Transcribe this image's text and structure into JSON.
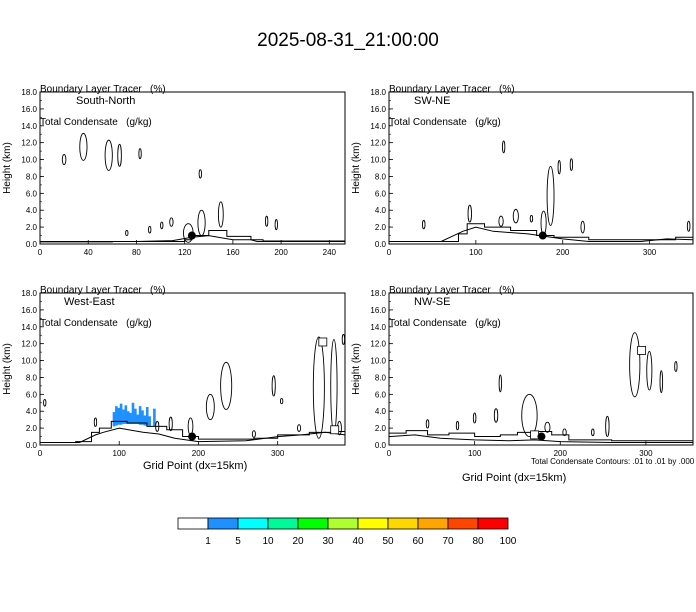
{
  "title": "2025-08-31_21:00:00",
  "header_line1": "Boundary Layer Tracer   (%)",
  "header_line2": "Total Condensate   (g/kg)",
  "x_axis_title": "Grid Point (dx=15km)",
  "y_axis_title": "Height (km)",
  "footnote": "Total Condensate Contours: .01 to .01 by .000",
  "colorbar": {
    "colors": [
      "#ffffff",
      "#1e90ff",
      "#00ffff",
      "#00fa9a",
      "#00ff00",
      "#adff2f",
      "#ffff00",
      "#ffd700",
      "#ffa500",
      "#ff4500",
      "#ff0000"
    ],
    "labels": [
      "1",
      "5",
      "10",
      "20",
      "30",
      "40",
      "50",
      "60",
      "70",
      "80",
      "100"
    ]
  },
  "chart_data": [
    {
      "type": "heatmap",
      "panel_label": "South-North",
      "xlim": [
        0,
        253
      ],
      "ylim": [
        0,
        18
      ],
      "x_ticks": [
        "0",
        "40",
        "80",
        "120",
        "160",
        "200",
        "240"
      ],
      "y_ticks": [
        "0.0",
        "2.0",
        "4.0",
        "6.0",
        "8.0",
        "10.0",
        "12.0",
        "14.0",
        "16.0",
        "18.0"
      ],
      "marker": {
        "x": 126,
        "y": 1.0
      },
      "terrain": [
        [
          0,
          0.3
        ],
        [
          40,
          0.3
        ],
        [
          80,
          0.3
        ],
        [
          110,
          0.4
        ],
        [
          126,
          0.8
        ],
        [
          140,
          1.0
        ],
        [
          160,
          0.5
        ],
        [
          175,
          0.5
        ],
        [
          180,
          0.3
        ],
        [
          253,
          0.3
        ]
      ],
      "boundary_layer": [
        [
          0,
          0.25
        ],
        [
          60,
          0.3
        ],
        [
          100,
          0.3
        ],
        [
          120,
          0.5
        ],
        [
          126,
          1.0
        ],
        [
          140,
          1.6
        ],
        [
          155,
          0.9
        ],
        [
          175,
          0.5
        ],
        [
          185,
          0.35
        ],
        [
          253,
          0.35
        ]
      ],
      "condensate": [
        {
          "cx": 20,
          "cy": 10,
          "rx": 1.5,
          "ry": 0.6
        },
        {
          "cx": 36,
          "cy": 11.5,
          "rx": 3,
          "ry": 1.6
        },
        {
          "cx": 57,
          "cy": 10.5,
          "rx": 3,
          "ry": 1.8
        },
        {
          "cx": 66,
          "cy": 10.5,
          "rx": 1.5,
          "ry": 1.3
        },
        {
          "cx": 83,
          "cy": 10.7,
          "rx": 0.8,
          "ry": 0.6
        },
        {
          "cx": 133,
          "cy": 8.3,
          "rx": 1,
          "ry": 0.5
        },
        {
          "cx": 123,
          "cy": 1.3,
          "rx": 4,
          "ry": 1.1
        },
        {
          "cx": 134,
          "cy": 2.5,
          "rx": 3,
          "ry": 1.5
        },
        {
          "cx": 150,
          "cy": 3.5,
          "rx": 2,
          "ry": 1.5
        },
        {
          "cx": 101,
          "cy": 2.2,
          "rx": 1,
          "ry": 0.4
        },
        {
          "cx": 109,
          "cy": 2.6,
          "rx": 1.4,
          "ry": 0.5
        },
        {
          "cx": 91,
          "cy": 1.7,
          "rx": 1,
          "ry": 0.4
        },
        {
          "cx": 188,
          "cy": 2.7,
          "rx": 1,
          "ry": 0.6
        },
        {
          "cx": 196,
          "cy": 2.3,
          "rx": 1,
          "ry": 0.6
        },
        {
          "cx": 72,
          "cy": 1.3,
          "rx": 0.8,
          "ry": 0.3
        }
      ],
      "shaded": []
    },
    {
      "type": "heatmap",
      "panel_label": "SW-NE",
      "xlim": [
        0,
        350
      ],
      "ylim": [
        0,
        18
      ],
      "x_ticks": [
        "0",
        "100",
        "200",
        "300"
      ],
      "y_ticks": [
        "0.0",
        "2.0",
        "4.0",
        "6.0",
        "8.0",
        "10.0",
        "12.0",
        "14.0",
        "16.0",
        "18.0"
      ],
      "marker": {
        "x": 177,
        "y": 1.0
      },
      "terrain": [
        [
          0,
          0.3
        ],
        [
          60,
          0.3
        ],
        [
          85,
          1.5
        ],
        [
          100,
          2.0
        ],
        [
          120,
          1.5
        ],
        [
          160,
          1.2
        ],
        [
          200,
          0.6
        ],
        [
          230,
          0.3
        ],
        [
          290,
          0.3
        ],
        [
          320,
          0.6
        ],
        [
          350,
          0.5
        ]
      ],
      "boundary_layer": [
        [
          0,
          0.3
        ],
        [
          60,
          0.3
        ],
        [
          80,
          1.2
        ],
        [
          90,
          2.4
        ],
        [
          110,
          2.0
        ],
        [
          140,
          1.6
        ],
        [
          170,
          1.0
        ],
        [
          190,
          0.8
        ],
        [
          230,
          0.5
        ],
        [
          300,
          0.5
        ],
        [
          330,
          0.8
        ],
        [
          350,
          0.7
        ]
      ],
      "condensate": [
        {
          "cx": 40,
          "cy": 2.3,
          "rx": 1.5,
          "ry": 0.5
        },
        {
          "cx": 93,
          "cy": 3.6,
          "rx": 2,
          "ry": 1.0
        },
        {
          "cx": 129,
          "cy": 2.7,
          "rx": 2.5,
          "ry": 0.6
        },
        {
          "cx": 132,
          "cy": 11.5,
          "rx": 1.2,
          "ry": 0.7
        },
        {
          "cx": 146,
          "cy": 3.3,
          "rx": 3,
          "ry": 0.8
        },
        {
          "cx": 164,
          "cy": 3.0,
          "rx": 1.2,
          "ry": 0.4
        },
        {
          "cx": 178,
          "cy": 2.5,
          "rx": 3,
          "ry": 1.4
        },
        {
          "cx": 186,
          "cy": 5.7,
          "rx": 4,
          "ry": 3.5
        },
        {
          "cx": 196,
          "cy": 9.1,
          "rx": 1.2,
          "ry": 0.8
        },
        {
          "cx": 210,
          "cy": 9.4,
          "rx": 1.2,
          "ry": 0.7
        },
        {
          "cx": 223,
          "cy": 2.0,
          "rx": 2,
          "ry": 0.7
        },
        {
          "cx": 345,
          "cy": 2.1,
          "rx": 1.5,
          "ry": 0.6
        }
      ],
      "shaded": []
    },
    {
      "type": "heatmap",
      "panel_label": "West-East",
      "xlim": [
        0,
        385
      ],
      "ylim": [
        0,
        18
      ],
      "x_ticks": [
        "0",
        "100",
        "200",
        "300"
      ],
      "y_ticks": [
        "0.0",
        "2.0",
        "4.0",
        "6.0",
        "8.0",
        "10.0",
        "12.0",
        "14.0",
        "16.0",
        "18.0"
      ],
      "marker": {
        "x": 192,
        "y": 1.0
      },
      "terrain": [
        [
          0,
          0.3
        ],
        [
          50,
          0.3
        ],
        [
          70,
          1.2
        ],
        [
          80,
          1.5
        ],
        [
          100,
          2.0
        ],
        [
          130,
          1.5
        ],
        [
          150,
          1.3
        ],
        [
          170,
          0.8
        ],
        [
          200,
          0.4
        ],
        [
          260,
          0.5
        ],
        [
          300,
          1.0
        ],
        [
          330,
          1.2
        ],
        [
          360,
          1.5
        ],
        [
          385,
          1.2
        ]
      ],
      "boundary_layer": [
        [
          0,
          0.3
        ],
        [
          45,
          0.4
        ],
        [
          65,
          1.5
        ],
        [
          75,
          2.0
        ],
        [
          90,
          2.8
        ],
        [
          110,
          2.6
        ],
        [
          135,
          2.2
        ],
        [
          160,
          1.8
        ],
        [
          180,
          1.0
        ],
        [
          200,
          0.7
        ],
        [
          270,
          0.8
        ],
        [
          300,
          1.2
        ],
        [
          340,
          1.5
        ],
        [
          370,
          1.6
        ],
        [
          385,
          1.4
        ]
      ],
      "condensate": [
        {
          "cx": 235,
          "cy": 7.0,
          "rx": 7,
          "ry": 2.8
        },
        {
          "cx": 215,
          "cy": 4.5,
          "rx": 5,
          "ry": 1.5
        },
        {
          "cx": 190,
          "cy": 2.2,
          "rx": 3,
          "ry": 1.0
        },
        {
          "cx": 165,
          "cy": 2.5,
          "rx": 2,
          "ry": 0.8
        },
        {
          "cx": 148,
          "cy": 2.2,
          "rx": 2,
          "ry": 0.6
        },
        {
          "cx": 295,
          "cy": 7.0,
          "rx": 2,
          "ry": 1.2
        },
        {
          "cx": 305,
          "cy": 5.2,
          "rx": 1,
          "ry": 0.3
        },
        {
          "cx": 327,
          "cy": 2.0,
          "rx": 2,
          "ry": 0.4
        },
        {
          "cx": 270,
          "cy": 1.3,
          "rx": 2,
          "ry": 0.4
        },
        {
          "cx": 352,
          "cy": 6.8,
          "rx": 7,
          "ry": 6.0
        },
        {
          "cx": 371,
          "cy": 7.0,
          "rx": 4,
          "ry": 5.5
        },
        {
          "cx": 378,
          "cy": 2.0,
          "rx": 2.5,
          "ry": 0.8
        },
        {
          "cx": 383,
          "cy": 12.5,
          "rx": 1.5,
          "ry": 0.6
        },
        {
          "cx": 70,
          "cy": 2.7,
          "rx": 1.5,
          "ry": 0.5
        },
        {
          "cx": 6,
          "cy": 5.0,
          "rx": 1,
          "ry": 0.4
        }
      ],
      "shaded": [
        {
          "x": 93,
          "y0": 2.2,
          "y1": 3.9
        },
        {
          "x": 96,
          "y0": 2.3,
          "y1": 4.6
        },
        {
          "x": 99,
          "y0": 2.4,
          "y1": 4.4
        },
        {
          "x": 102,
          "y0": 2.4,
          "y1": 4.9
        },
        {
          "x": 105,
          "y0": 2.5,
          "y1": 4.2
        },
        {
          "x": 108,
          "y0": 2.5,
          "y1": 4.7
        },
        {
          "x": 111,
          "y0": 2.5,
          "y1": 4.0
        },
        {
          "x": 114,
          "y0": 2.5,
          "y1": 3.8
        },
        {
          "x": 117,
          "y0": 2.5,
          "y1": 5.0
        },
        {
          "x": 120,
          "y0": 2.5,
          "y1": 4.3
        },
        {
          "x": 123,
          "y0": 2.5,
          "y1": 3.6
        },
        {
          "x": 126,
          "y0": 2.4,
          "y1": 4.6
        },
        {
          "x": 129,
          "y0": 2.4,
          "y1": 4.1
        },
        {
          "x": 132,
          "y0": 2.3,
          "y1": 3.5
        },
        {
          "x": 135,
          "y0": 2.3,
          "y1": 4.5
        },
        {
          "x": 138,
          "y0": 2.2,
          "y1": 3.4
        },
        {
          "x": 144,
          "y0": 2.2,
          "y1": 4.3
        }
      ],
      "box_markers": [
        {
          "x": 357,
          "y": 12.2
        },
        {
          "x": 372,
          "y": 1.8
        }
      ]
    },
    {
      "type": "heatmap",
      "panel_label": "NW-SE",
      "xlim": [
        0,
        355
      ],
      "ylim": [
        0,
        18
      ],
      "x_ticks": [
        "0",
        "100",
        "200",
        "300"
      ],
      "y_ticks": [
        "0.0",
        "2.0",
        "4.0",
        "6.0",
        "8.0",
        "10.0",
        "12.0",
        "14.0",
        "16.0",
        "18.0"
      ],
      "marker": {
        "x": 178,
        "y": 1.0
      },
      "terrain": [
        [
          0,
          1.0
        ],
        [
          30,
          1.2
        ],
        [
          60,
          0.8
        ],
        [
          100,
          0.6
        ],
        [
          140,
          0.5
        ],
        [
          170,
          0.6
        ],
        [
          200,
          0.4
        ],
        [
          260,
          0.3
        ],
        [
          300,
          0.3
        ],
        [
          355,
          0.3
        ]
      ],
      "boundary_layer": [
        [
          0,
          1.4
        ],
        [
          20,
          1.7
        ],
        [
          45,
          1.2
        ],
        [
          70,
          1.4
        ],
        [
          100,
          1.0
        ],
        [
          130,
          1.2
        ],
        [
          150,
          1.5
        ],
        [
          170,
          1.6
        ],
        [
          190,
          1.2
        ],
        [
          210,
          0.6
        ],
        [
          260,
          0.5
        ],
        [
          355,
          0.5
        ]
      ],
      "condensate": [
        {
          "cx": 45,
          "cy": 2.5,
          "rx": 1.5,
          "ry": 0.5
        },
        {
          "cx": 80,
          "cy": 2.3,
          "rx": 1,
          "ry": 0.5
        },
        {
          "cx": 100,
          "cy": 3.2,
          "rx": 1.5,
          "ry": 0.6
        },
        {
          "cx": 125,
          "cy": 3.5,
          "rx": 2,
          "ry": 0.8
        },
        {
          "cx": 130,
          "cy": 7.3,
          "rx": 1,
          "ry": 1.0
        },
        {
          "cx": 164,
          "cy": 3.5,
          "rx": 9,
          "ry": 2.5
        },
        {
          "cx": 185,
          "cy": 2.1,
          "rx": 3,
          "ry": 0.6
        },
        {
          "cx": 205,
          "cy": 1.5,
          "rx": 2,
          "ry": 0.4
        },
        {
          "cx": 238,
          "cy": 1.5,
          "rx": 1.5,
          "ry": 0.4
        },
        {
          "cx": 255,
          "cy": 2.2,
          "rx": 2,
          "ry": 1.2
        },
        {
          "cx": 287,
          "cy": 9.5,
          "rx": 6,
          "ry": 3.8
        },
        {
          "cx": 304,
          "cy": 8.8,
          "rx": 3,
          "ry": 2.3
        },
        {
          "cx": 318,
          "cy": 7.5,
          "rx": 1.5,
          "ry": 1.3
        },
        {
          "cx": 335,
          "cy": 9.3,
          "rx": 1,
          "ry": 0.6
        }
      ],
      "shaded": [],
      "box_markers": [
        {
          "x": 170,
          "y": 1.2
        },
        {
          "x": 295,
          "y": 11.2
        }
      ]
    }
  ]
}
